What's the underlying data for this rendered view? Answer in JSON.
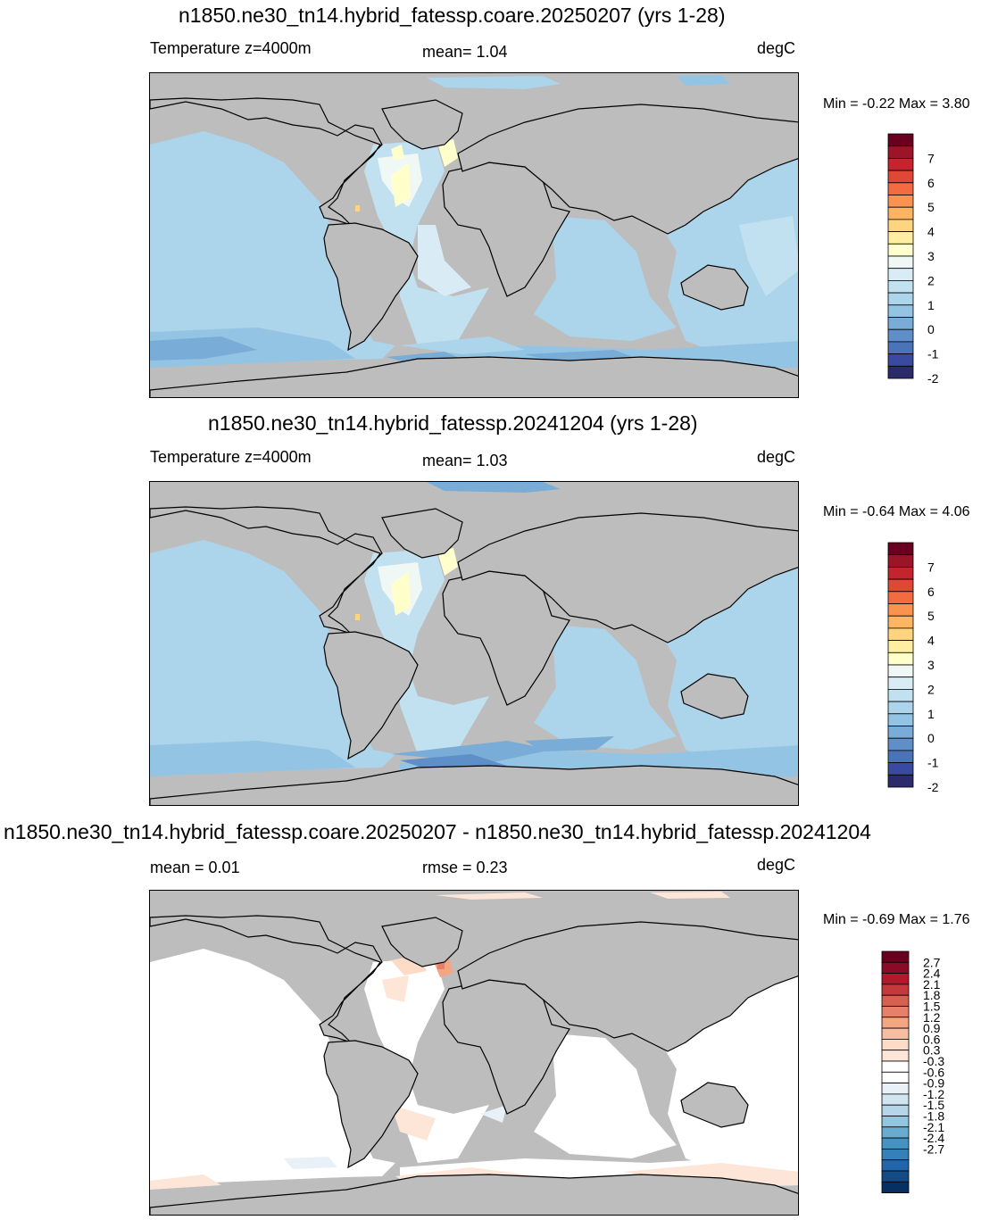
{
  "panels": [
    {
      "title": "n1850.ne30_tn14.hybrid_fatessp.coare.20250207 (yrs 1-28)",
      "left_label": "Temperature z=4000m",
      "center_label": "mean=   1.04",
      "units": "degC",
      "minmax": "Min =  -0.22 Max =   3.80",
      "colorbar": {
        "colors": [
          "#2b2b6b",
          "#3a4aa0",
          "#4a73b8",
          "#5e8fc8",
          "#79acd6",
          "#94c4e3",
          "#acd4ea",
          "#c2e1f0",
          "#d9ecf6",
          "#f0f8f6",
          "#ffffcc",
          "#ffee9f",
          "#fed47f",
          "#fdb562",
          "#fb924f",
          "#f36c41",
          "#e04836",
          "#c3242d",
          "#9b1528",
          "#6a0020"
        ],
        "labels": [
          "7",
          "6",
          "5",
          "4",
          "3",
          "2",
          "1",
          "0",
          "-1",
          "-2"
        ]
      }
    },
    {
      "title": "n1850.ne30_tn14.hybrid_fatessp.20241204 (yrs 1-28)",
      "left_label": "Temperature z=4000m",
      "center_label": "mean=   1.03",
      "units": "degC",
      "minmax": "Min =  -0.64 Max =   4.06",
      "colorbar": {
        "colors": [
          "#2b2b6b",
          "#3a4aa0",
          "#4a73b8",
          "#5e8fc8",
          "#79acd6",
          "#94c4e3",
          "#acd4ea",
          "#c2e1f0",
          "#d9ecf6",
          "#f0f8f6",
          "#ffffcc",
          "#ffee9f",
          "#fed47f",
          "#fdb562",
          "#fb924f",
          "#f36c41",
          "#e04836",
          "#c3242d",
          "#9b1528",
          "#6a0020"
        ],
        "labels": [
          "7",
          "6",
          "5",
          "4",
          "3",
          "2",
          "1",
          "0",
          "-1",
          "-2"
        ]
      }
    },
    {
      "title": "n1850.ne30_tn14.hybrid_fatessp.coare.20250207 - n1850.ne30_tn14.hybrid_fatessp.20241204",
      "left_label": "mean =    0.01",
      "center_label": "rmse =    0.23",
      "units": "degC",
      "minmax": "Min =  -0.69 Max =   1.76",
      "colorbar": {
        "colors": [
          "#053061",
          "#134b87",
          "#2166ac",
          "#3480b9",
          "#4393c3",
          "#6aaccf",
          "#92c5de",
          "#b4d6e8",
          "#d1e5f0",
          "#e8f1f7",
          "#ffffff",
          "#ffffff",
          "#fde6d8",
          "#fddbc7",
          "#f8bda3",
          "#f4a582",
          "#e7806b",
          "#d6604d",
          "#c3393d",
          "#b2182b",
          "#8a0b25",
          "#67001f"
        ],
        "labels": [
          "2.7",
          "2.4",
          "2.1",
          "1.8",
          "1.5",
          "1.2",
          "0.9",
          "0.6",
          "0.3",
          "-0.3",
          "-0.6",
          "-0.9",
          "-1.2",
          "-1.5",
          "-1.8",
          "-2.1",
          "-2.4",
          "-2.7"
        ]
      }
    }
  ],
  "colors": {
    "land": "#bdbdbd",
    "coast": "#000000"
  }
}
